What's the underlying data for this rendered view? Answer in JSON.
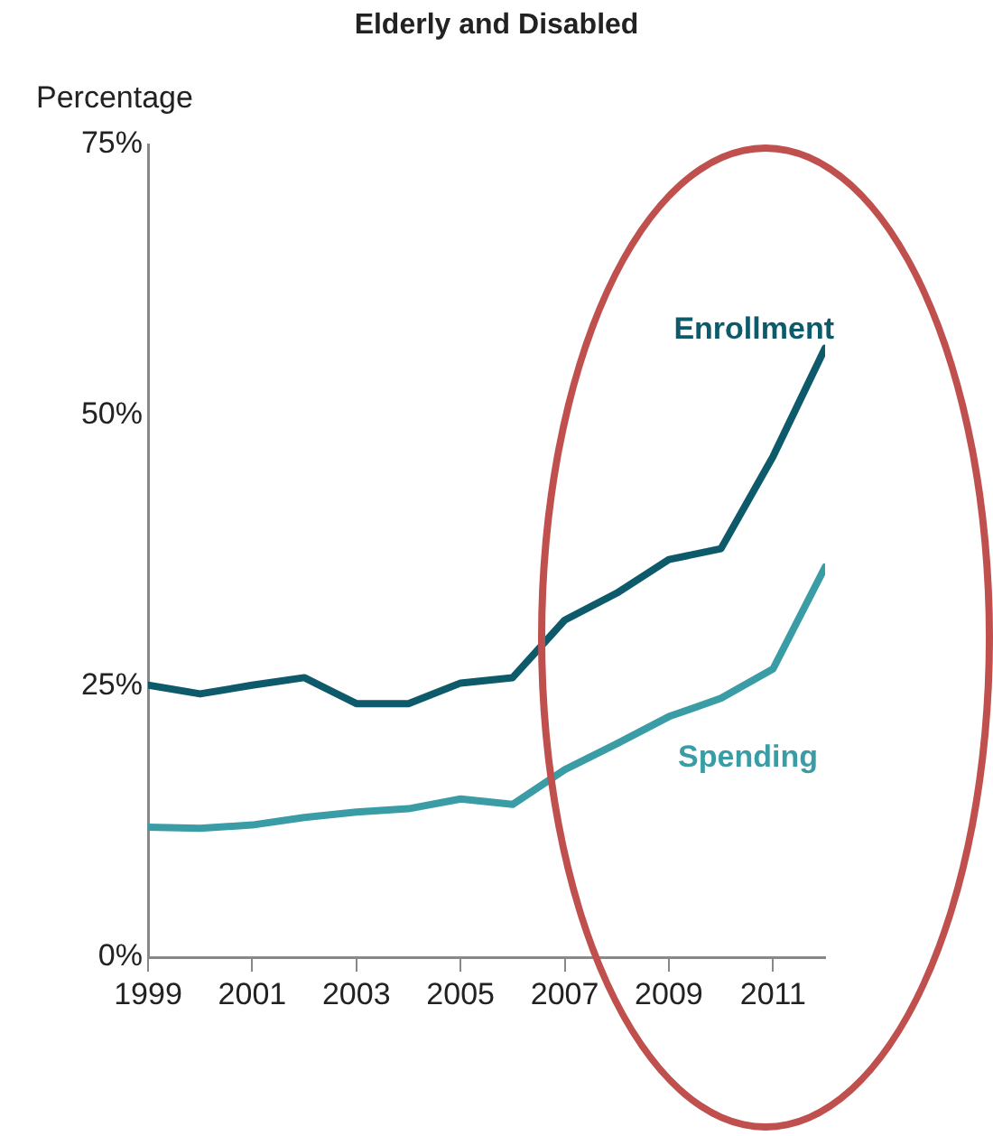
{
  "chart_data": {
    "type": "line",
    "title": "Elderly and Disabled",
    "ylabel": "Percentage",
    "x": [
      1999,
      2000,
      2001,
      2002,
      2003,
      2004,
      2005,
      2006,
      2007,
      2008,
      2009,
      2010,
      2011,
      2012
    ],
    "series": [
      {
        "name": "Enrollment",
        "color": "#0d5a6b",
        "values": [
          25.1,
          24.3,
          25.1,
          25.8,
          23.4,
          23.4,
          25.3,
          25.8,
          31.1,
          33.6,
          36.7,
          37.7,
          46.2,
          56.2
        ]
      },
      {
        "name": "Spending",
        "color": "#3a9da6",
        "values": [
          12.0,
          11.9,
          12.2,
          12.9,
          13.4,
          13.7,
          14.6,
          14.1,
          17.3,
          19.7,
          22.2,
          23.9,
          26.6,
          36.0
        ]
      }
    ],
    "xlim": [
      1999,
      2012
    ],
    "xticks": [
      1999,
      2001,
      2003,
      2005,
      2007,
      2009,
      2011
    ],
    "ylim": [
      0,
      75
    ],
    "yticks": [
      {
        "value": 0,
        "label": "0%"
      },
      {
        "value": 25,
        "label": "25%"
      },
      {
        "value": 50,
        "label": "50%"
      },
      {
        "value": 75,
        "label": "75%"
      }
    ],
    "grid": false,
    "legend": false,
    "marker": "none",
    "line_style": "solid"
  }
}
